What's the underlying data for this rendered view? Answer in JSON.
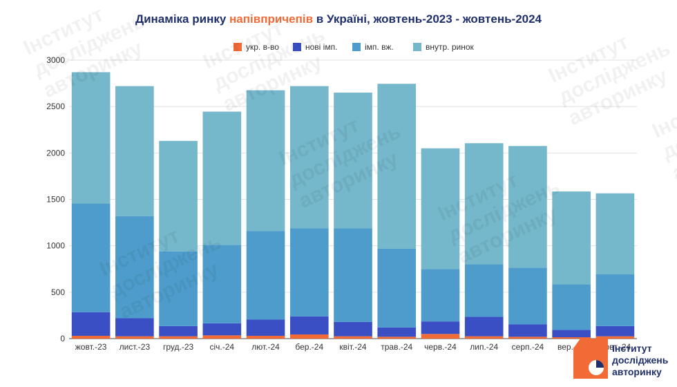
{
  "chart_data": {
    "type": "bar",
    "stacked": true,
    "title_parts": [
      "Динаміка ринку ",
      "напівпричепів",
      " в Україні, жовтень-2023 - жовтень-2024"
    ],
    "categories": [
      "жовт.-23",
      "лист.-23",
      "груд.-23",
      "січ.-24",
      "лют.-24",
      "бер.-24",
      "квіт.-24",
      "трав.-24",
      "черв.-24",
      "лип.-24",
      "серп.-24",
      "вер.-24",
      "жовт.-24"
    ],
    "series": [
      {
        "name": "укр. в-во",
        "color": "#f26a35",
        "values": [
          30,
          25,
          25,
          35,
          30,
          45,
          25,
          20,
          50,
          25,
          20,
          15,
          25
        ]
      },
      {
        "name": "нові імп.",
        "color": "#3a4fc4",
        "values": [
          255,
          195,
          110,
          130,
          175,
          195,
          155,
          100,
          135,
          210,
          135,
          80,
          110
        ]
      },
      {
        "name": "імп. вж.",
        "color": "#4e9ccb",
        "values": [
          1170,
          1100,
          805,
          845,
          955,
          950,
          1010,
          850,
          565,
          565,
          610,
          490,
          560
        ]
      },
      {
        "name": "внутр. ринок",
        "color": "#75b7cb",
        "values": [
          1415,
          1400,
          1190,
          1435,
          1515,
          1530,
          1460,
          1775,
          1300,
          1305,
          1310,
          1000,
          870
        ]
      }
    ],
    "ylim": [
      0,
      3000
    ],
    "yticks": [
      0,
      500,
      1000,
      1500,
      2000,
      2500,
      3000
    ],
    "grid": true,
    "legend_position": "top"
  },
  "colors": {
    "title": "#1f2f6b",
    "title_accent": "#f26a35",
    "grid": "#e0e0e0",
    "axis": "#333333"
  },
  "watermark": {
    "lines": [
      "Інститут",
      "досліджень",
      "авторинку"
    ]
  },
  "logo": {
    "lines": [
      "Інститут",
      "досліджень",
      "авторинку"
    ]
  }
}
